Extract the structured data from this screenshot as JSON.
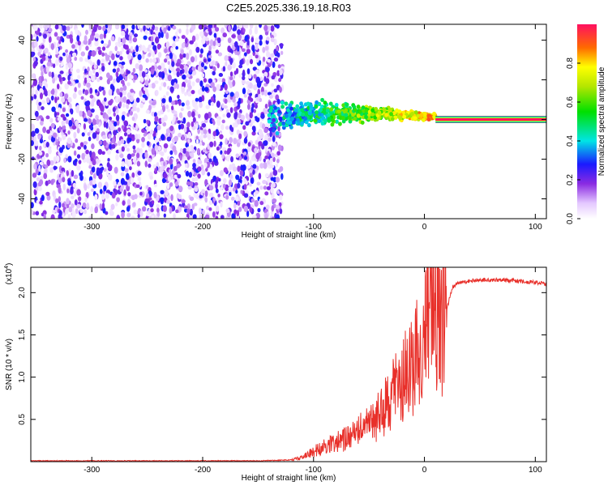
{
  "title": "C2E5.2025.336.19.18.R03",
  "colors": {
    "snr_line": "#e8302a",
    "axis": "#000000",
    "background": "#ffffff"
  },
  "chart_data": [
    {
      "type": "heatmap",
      "name": "spectrogram",
      "xlabel": "Height of straight line (km)",
      "ylabel": "Frequency (Hz)",
      "xlim": [
        -355,
        110
      ],
      "ylim": [
        -50,
        48
      ],
      "xticks": [
        -300,
        -200,
        -100,
        0,
        100
      ],
      "yticks": [
        -40,
        -20,
        0,
        20,
        40
      ],
      "regions": [
        {
          "kind": "noise",
          "x_range": [
            -355,
            -128
          ],
          "y_range": [
            -50,
            48
          ],
          "amplitude": 0.15
        },
        {
          "kind": "cluster",
          "x_range": [
            -140,
            10
          ],
          "y_range": [
            -12,
            8
          ],
          "amplitude": 0.45
        },
        {
          "kind": "tone",
          "x_range": [
            10,
            110
          ],
          "y_value": 0,
          "amplitude": 1.0
        }
      ],
      "colorbar": {
        "label": "Normalized spectral amplitude",
        "range": [
          0.0,
          1.0
        ],
        "ticks": [
          0.0,
          0.2,
          0.4,
          0.6,
          0.8
        ],
        "tick_labels": [
          "0.0",
          "0.2",
          "0.4",
          "0.6",
          "0.8"
        ]
      }
    },
    {
      "type": "line",
      "name": "snr",
      "xlabel": "Height of straight line (km)",
      "ylabel": "SNR (10 * v/v)",
      "scale_label": "(x10",
      "scale_exponent": "4",
      "xlim": [
        -355,
        110
      ],
      "ylim": [
        0.0,
        2.3
      ],
      "xticks": [
        -300,
        -200,
        -100,
        0,
        100
      ],
      "yticks": [
        0.5,
        1.0,
        1.5,
        2.0
      ],
      "ytick_labels": [
        "0.5",
        "1.0",
        "1.5",
        "2.0"
      ],
      "series": [
        {
          "name": "SNR",
          "x": [
            -355,
            -300,
            -250,
            -200,
            -150,
            -120,
            -110,
            -100,
            -90,
            -80,
            -70,
            -60,
            -50,
            -40,
            -30,
            -25,
            -20,
            -15,
            -10,
            -5,
            0,
            5,
            10,
            15,
            20,
            25,
            30,
            40,
            50,
            60,
            70,
            80,
            90,
            100,
            110
          ],
          "y": [
            0.01,
            0.01,
            0.01,
            0.01,
            0.01,
            0.02,
            0.05,
            0.12,
            0.18,
            0.22,
            0.28,
            0.35,
            0.45,
            0.55,
            0.75,
            0.85,
            0.95,
            1.05,
            1.15,
            1.3,
            1.5,
            1.7,
            1.9,
            1.6,
            1.8,
            2.05,
            2.12,
            2.14,
            2.15,
            2.15,
            2.15,
            2.14,
            2.13,
            2.12,
            2.1
          ]
        }
      ]
    }
  ]
}
